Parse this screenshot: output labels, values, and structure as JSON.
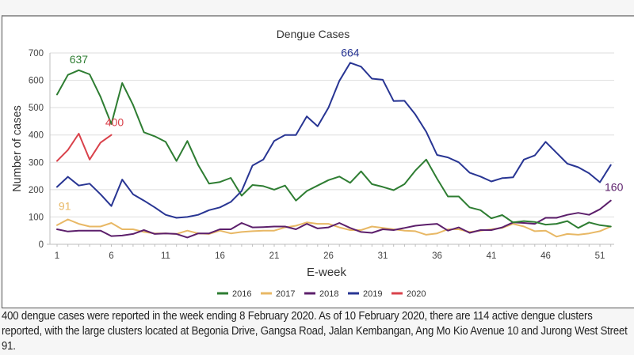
{
  "chart_data": {
    "type": "line",
    "title": "Dengue Cases",
    "xlabel": "E-week",
    "ylabel": "Number of cases",
    "ylim": [
      0,
      700
    ],
    "xlim": [
      1,
      52
    ],
    "yticks": [
      "0",
      "100",
      "200",
      "300",
      "400",
      "500",
      "600",
      "700"
    ],
    "xticks": [
      "1",
      "6",
      "11",
      "16",
      "21",
      "26",
      "31",
      "36",
      "41",
      "46",
      "51"
    ],
    "grid": "horizontal",
    "legend_position": "bottom",
    "series": [
      {
        "name": "2016",
        "color": "#2e7d32",
        "values": [
          548,
          620,
          637,
          622,
          540,
          440,
          590,
          510,
          410,
          395,
          375,
          305,
          378,
          290,
          222,
          228,
          243,
          178,
          217,
          213,
          200,
          215,
          160,
          195,
          215,
          235,
          248,
          225,
          267,
          220,
          210,
          198,
          220,
          270,
          310,
          240,
          175,
          175,
          135,
          125,
          95,
          107,
          80,
          85,
          82,
          72,
          75,
          85,
          60,
          80,
          70,
          65
        ],
        "annotation": {
          "week": 3,
          "label": "637"
        }
      },
      {
        "name": "2017",
        "color": "#e8b865",
        "values": [
          70,
          91,
          75,
          65,
          65,
          78,
          55,
          55,
          45,
          40,
          40,
          38,
          50,
          40,
          38,
          50,
          40,
          45,
          48,
          50,
          50,
          62,
          68,
          80,
          75,
          75,
          62,
          52,
          52,
          65,
          60,
          55,
          50,
          48,
          35,
          40,
          55,
          55,
          45,
          50,
          55,
          60,
          75,
          65,
          48,
          50,
          28,
          38,
          35,
          40,
          48,
          65
        ],
        "annotation": {
          "week": 2,
          "label": "91"
        }
      },
      {
        "name": "2018",
        "color": "#5c1f6b",
        "values": [
          55,
          47,
          50,
          50,
          50,
          30,
          32,
          38,
          52,
          38,
          40,
          38,
          25,
          40,
          40,
          55,
          55,
          78,
          62,
          63,
          65,
          65,
          55,
          75,
          58,
          62,
          78,
          60,
          45,
          42,
          55,
          52,
          60,
          68,
          72,
          75,
          50,
          62,
          42,
          52,
          52,
          62,
          80,
          78,
          75,
          97,
          97,
          108,
          115,
          108,
          128,
          160
        ],
        "annotation": {
          "week": 52,
          "label": "160"
        }
      },
      {
        "name": "2019",
        "color": "#283593",
        "values": [
          210,
          247,
          215,
          222,
          183,
          140,
          237,
          183,
          160,
          135,
          108,
          97,
          100,
          108,
          125,
          135,
          155,
          195,
          288,
          310,
          378,
          400,
          400,
          468,
          432,
          500,
          598,
          664,
          650,
          606,
          602,
          524,
          525,
          475,
          412,
          327,
          318,
          300,
          262,
          248,
          230,
          242,
          245,
          310,
          325,
          375,
          335,
          295,
          282,
          260,
          227,
          290
        ],
        "annotation": {
          "week": 28,
          "label": "664"
        }
      },
      {
        "name": "2020",
        "color": "#d9424b",
        "values": [
          305,
          345,
          405,
          310,
          372,
          400
        ],
        "annotation": {
          "week": 6,
          "label": "400"
        }
      }
    ]
  },
  "caption": "400 dengue cases were reported in the week ending 8 February 2020. As of 10 February 2020, there are 114 active dengue clusters reported, with the large clusters located at Begonia Drive, Gangsa Road, Jalan Kembangan, Ang Mo Kio Avenue 10 and Jurong West Street 91."
}
